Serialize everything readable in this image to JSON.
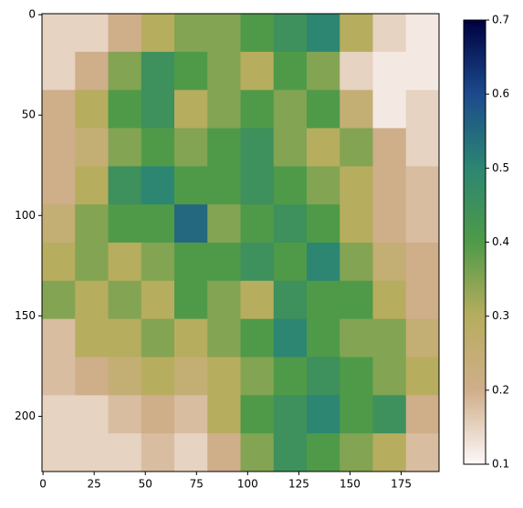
{
  "chart_data": {
    "type": "heatmap",
    "xlim": [
      -0.5,
      193.5
    ],
    "ylim": [
      227.5,
      -0.5
    ],
    "xticks": [
      0,
      25,
      50,
      75,
      100,
      125,
      150,
      175
    ],
    "yticks": [
      0,
      50,
      100,
      150,
      200
    ],
    "clim": [
      0.1,
      0.7
    ],
    "cticks": [
      0.1,
      0.2,
      0.3,
      0.4,
      0.5,
      0.6,
      0.7
    ],
    "colormap": [
      "#fdf8f8",
      "#cfae8a",
      "#b7ad5e",
      "#4f9a48",
      "#2c8672",
      "#1c4a8c",
      "#000040"
    ],
    "values": [
      [
        0.15,
        0.15,
        0.2,
        0.3,
        0.35,
        0.35,
        0.4,
        0.45,
        0.5,
        0.3,
        0.15,
        0.12
      ],
      [
        0.15,
        0.2,
        0.35,
        0.45,
        0.4,
        0.35,
        0.3,
        0.4,
        0.35,
        0.15,
        0.12,
        0.12
      ],
      [
        0.2,
        0.3,
        0.4,
        0.45,
        0.3,
        0.35,
        0.4,
        0.35,
        0.4,
        0.25,
        0.12,
        0.15
      ],
      [
        0.2,
        0.25,
        0.35,
        0.4,
        0.35,
        0.4,
        0.45,
        0.35,
        0.3,
        0.35,
        0.2,
        0.15
      ],
      [
        0.2,
        0.3,
        0.45,
        0.5,
        0.4,
        0.4,
        0.45,
        0.4,
        0.35,
        0.3,
        0.2,
        0.18
      ],
      [
        0.25,
        0.35,
        0.4,
        0.4,
        0.55,
        0.35,
        0.4,
        0.45,
        0.4,
        0.3,
        0.2,
        0.18
      ],
      [
        0.3,
        0.35,
        0.3,
        0.35,
        0.4,
        0.4,
        0.45,
        0.4,
        0.5,
        0.35,
        0.25,
        0.2
      ],
      [
        0.35,
        0.3,
        0.35,
        0.3,
        0.4,
        0.35,
        0.3,
        0.45,
        0.4,
        0.4,
        0.3,
        0.2
      ],
      [
        0.18,
        0.3,
        0.3,
        0.35,
        0.3,
        0.35,
        0.4,
        0.5,
        0.4,
        0.35,
        0.35,
        0.25
      ],
      [
        0.18,
        0.2,
        0.25,
        0.3,
        0.25,
        0.3,
        0.35,
        0.4,
        0.45,
        0.4,
        0.35,
        0.3
      ],
      [
        0.15,
        0.15,
        0.18,
        0.2,
        0.18,
        0.3,
        0.4,
        0.45,
        0.5,
        0.4,
        0.45,
        0.2
      ],
      [
        0.15,
        0.15,
        0.15,
        0.18,
        0.15,
        0.2,
        0.35,
        0.45,
        0.4,
        0.35,
        0.3,
        0.18
      ]
    ]
  }
}
